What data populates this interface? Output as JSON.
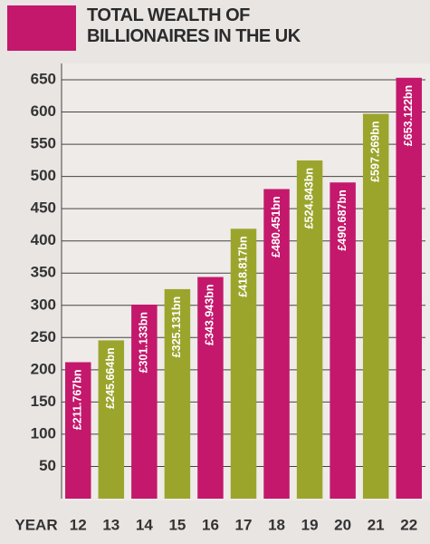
{
  "chart_data": {
    "type": "bar",
    "title": "TOTAL WEALTH OF BILLIONAIRES IN THE UK",
    "xlabel": "YEAR",
    "categories": [
      "12",
      "13",
      "14",
      "15",
      "16",
      "17",
      "18",
      "19",
      "20",
      "21",
      "22"
    ],
    "values": [
      211.767,
      245.664,
      301.133,
      325.131,
      343.943,
      418.817,
      480.451,
      524.843,
      490.687,
      597.269,
      653.122
    ],
    "value_labels": [
      "£211.767bn",
      "£245.664bn",
      "£301.133bn",
      "£325.131bn",
      "£343.943bn",
      "£418.817bn",
      "£480.451bn",
      "£524.843bn",
      "£490.687bn",
      "£597.269bn",
      "£653.122bn"
    ],
    "colors": [
      "#c4186c",
      "#9ba52c",
      "#c4186c",
      "#9ba52c",
      "#c4186c",
      "#9ba52c",
      "#c4186c",
      "#9ba52c",
      "#c4186c",
      "#9ba52c",
      "#c4186c"
    ],
    "ylim": [
      0,
      650
    ],
    "yticks": [
      50,
      100,
      150,
      200,
      250,
      300,
      350,
      400,
      450,
      500,
      550,
      600,
      650
    ],
    "grid": true
  }
}
